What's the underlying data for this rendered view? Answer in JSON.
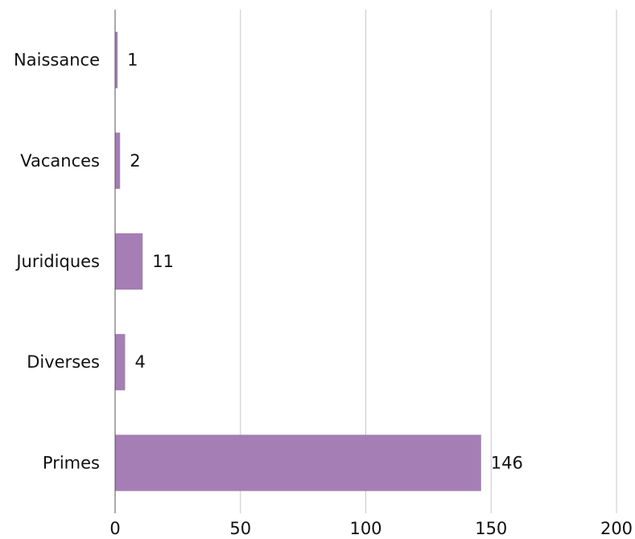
{
  "chart_data": {
    "type": "bar",
    "orientation": "horizontal",
    "categories": [
      "Naissance",
      "Vacances",
      "Juridiques",
      "Diverses",
      "Primes"
    ],
    "values": [
      1,
      2,
      11,
      4,
      146
    ],
    "data_labels": [
      "1",
      "2",
      "11",
      "4",
      "146"
    ],
    "xlim": [
      0,
      200
    ],
    "x_ticks": [
      0,
      50,
      100,
      150,
      200
    ],
    "x_tick_labels": [
      "0",
      "50",
      "100",
      "150",
      "200"
    ],
    "title": "",
    "xlabel": "",
    "ylabel": "",
    "grid": "vertical",
    "legend": "none",
    "colors": {
      "bar": "#a57eb5",
      "grid": "#c8c8c8",
      "axis": "#555555",
      "text": "#111111"
    }
  }
}
